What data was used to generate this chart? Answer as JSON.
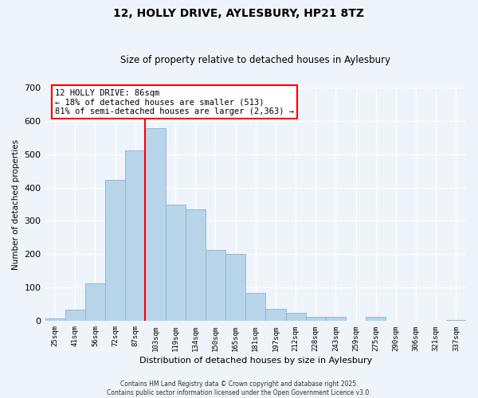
{
  "title": "12, HOLLY DRIVE, AYLESBURY, HP21 8TZ",
  "subtitle": "Size of property relative to detached houses in Aylesbury",
  "xlabel": "Distribution of detached houses by size in Aylesbury",
  "ylabel": "Number of detached properties",
  "categories": [
    "25sqm",
    "41sqm",
    "56sqm",
    "72sqm",
    "87sqm",
    "103sqm",
    "119sqm",
    "134sqm",
    "150sqm",
    "165sqm",
    "181sqm",
    "197sqm",
    "212sqm",
    "228sqm",
    "243sqm",
    "259sqm",
    "275sqm",
    "290sqm",
    "306sqm",
    "321sqm",
    "337sqm"
  ],
  "values": [
    8,
    35,
    113,
    422,
    510,
    578,
    348,
    335,
    212,
    202,
    85,
    37,
    26,
    12,
    12,
    0,
    12,
    0,
    0,
    0,
    3
  ],
  "bar_color": "#b8d4e8",
  "bar_edge_color": "#8ab4d4",
  "vline_x_index": 4,
  "vline_color": "red",
  "annotation_title": "12 HOLLY DRIVE: 86sqm",
  "annotation_line1": "← 18% of detached houses are smaller (513)",
  "annotation_line2": "81% of semi-detached houses are larger (2,363) →",
  "annotation_box_color": "white",
  "annotation_box_edge_color": "red",
  "ylim": [
    0,
    700
  ],
  "yticks": [
    0,
    100,
    200,
    300,
    400,
    500,
    600,
    700
  ],
  "footer_line1": "Contains HM Land Registry data © Crown copyright and database right 2025.",
  "footer_line2": "Contains public sector information licensed under the Open Government Licence v3.0.",
  "background_color": "#eef4fa",
  "grid_color": "#ffffff"
}
